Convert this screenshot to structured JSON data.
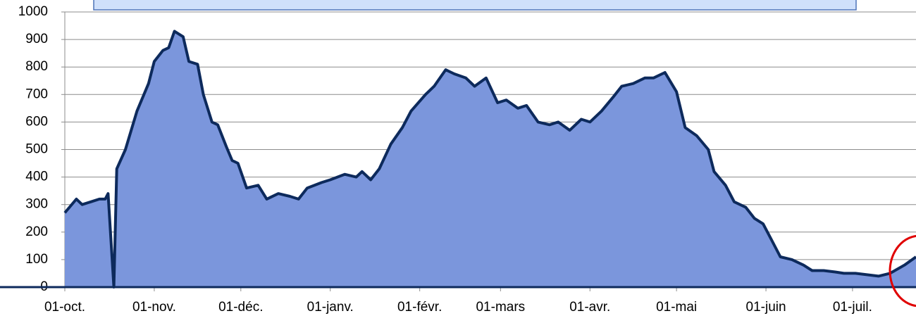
{
  "chart_data": {
    "type": "area",
    "x": [
      0,
      4,
      6,
      9,
      12,
      14,
      15,
      17,
      18,
      21,
      25,
      29,
      31,
      34,
      36,
      38,
      41,
      43,
      46,
      48,
      51,
      53,
      56,
      58,
      60,
      63,
      67,
      70,
      74,
      78,
      81,
      84,
      89,
      92,
      97,
      101,
      103,
      106,
      109,
      113,
      117,
      120,
      125,
      128,
      132,
      135,
      139,
      142,
      146,
      150,
      153,
      157,
      160,
      164,
      168,
      171,
      175,
      179,
      182,
      186,
      190,
      193,
      197,
      201,
      204,
      208,
      212,
      215,
      219,
      223,
      225,
      229,
      232,
      236,
      239,
      242,
      245,
      248,
      252,
      256,
      259,
      263,
      267,
      270,
      274,
      278,
      282,
      286,
      291,
      295
    ],
    "values": [
      270,
      320,
      300,
      310,
      320,
      320,
      340,
      0,
      430,
      500,
      640,
      740,
      820,
      860,
      870,
      930,
      910,
      820,
      810,
      700,
      600,
      590,
      510,
      460,
      450,
      360,
      370,
      320,
      340,
      330,
      320,
      360,
      380,
      390,
      410,
      400,
      420,
      390,
      430,
      520,
      580,
      640,
      700,
      730,
      790,
      775,
      760,
      730,
      760,
      670,
      680,
      650,
      660,
      600,
      590,
      600,
      570,
      610,
      600,
      640,
      690,
      730,
      740,
      760,
      760,
      780,
      710,
      580,
      550,
      500,
      420,
      370,
      310,
      290,
      250,
      230,
      170,
      110,
      100,
      80,
      60,
      60,
      55,
      50,
      50,
      45,
      40,
      50,
      80,
      110
    ],
    "color": "#7b96dc",
    "line_color": "#0d2a5c",
    "xlim": [
      0,
      295
    ],
    "xticks": [
      {
        "value": 0,
        "label": "01-oct."
      },
      {
        "value": 31,
        "label": "01-nov."
      },
      {
        "value": 61,
        "label": "01-déc."
      },
      {
        "value": 92,
        "label": "01-janv."
      },
      {
        "value": 123,
        "label": "01-févr."
      },
      {
        "value": 151,
        "label": "01-mars"
      },
      {
        "value": 182,
        "label": "01-avr."
      },
      {
        "value": 212,
        "label": "01-mai"
      },
      {
        "value": 243,
        "label": "01-juin"
      },
      {
        "value": 273,
        "label": "01-juil."
      }
    ],
    "ylim": [
      0,
      1000
    ],
    "yticks": [
      0,
      100,
      200,
      300,
      400,
      500,
      600,
      700,
      800,
      900,
      1000
    ],
    "grid": true
  }
}
